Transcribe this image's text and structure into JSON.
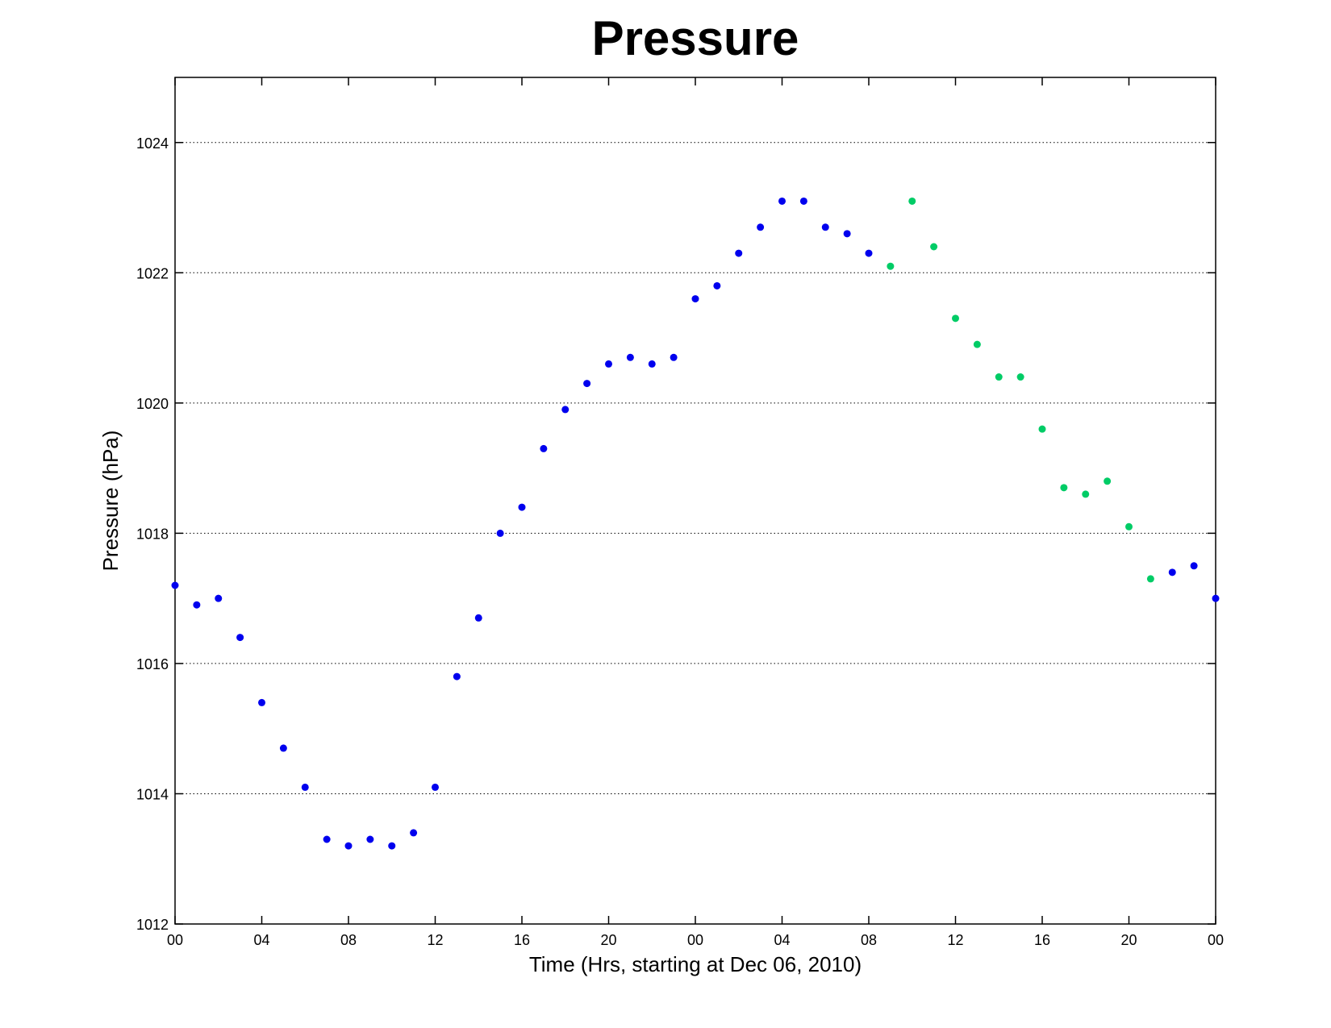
{
  "chart_data": {
    "type": "scatter",
    "title": "Pressure",
    "xlabel": "Time (Hrs, starting at Dec 06, 2010)",
    "ylabel": "Pressure (hPa)",
    "xlim": [
      0,
      48
    ],
    "ylim": [
      1012,
      1025
    ],
    "x_ticks": [
      0,
      4,
      8,
      12,
      16,
      20,
      24,
      28,
      32,
      36,
      40,
      44,
      48
    ],
    "x_tick_labels": [
      "00",
      "04",
      "08",
      "12",
      "16",
      "20",
      "00",
      "04",
      "08",
      "12",
      "16",
      "20",
      "00"
    ],
    "y_ticks": [
      1012,
      1014,
      1016,
      1018,
      1020,
      1022,
      1024
    ],
    "y_tick_labels": [
      "1012",
      "1014",
      "1016",
      "1018",
      "1020",
      "1022",
      "1024"
    ],
    "grid": "horizontal dotted",
    "series": [
      {
        "color": "#0000ee",
        "points": [
          [
            0,
            1017.2
          ],
          [
            1,
            1016.9
          ],
          [
            2,
            1017.0
          ],
          [
            3,
            1016.4
          ],
          [
            4,
            1015.4
          ],
          [
            5,
            1014.7
          ],
          [
            6,
            1014.1
          ],
          [
            7,
            1013.3
          ],
          [
            8,
            1013.2
          ],
          [
            9,
            1013.3
          ],
          [
            10,
            1013.2
          ],
          [
            11,
            1013.4
          ],
          [
            12,
            1014.1
          ],
          [
            13,
            1015.8
          ],
          [
            14,
            1016.7
          ],
          [
            15,
            1018.0
          ],
          [
            16,
            1018.4
          ],
          [
            17,
            1019.3
          ],
          [
            18,
            1019.9
          ],
          [
            19,
            1020.3
          ],
          [
            20,
            1020.6
          ],
          [
            21,
            1020.7
          ],
          [
            22,
            1020.6
          ],
          [
            23,
            1020.7
          ],
          [
            24,
            1021.6
          ],
          [
            25,
            1021.8
          ],
          [
            26,
            1022.3
          ],
          [
            27,
            1022.7
          ],
          [
            28,
            1023.1
          ],
          [
            29,
            1023.1
          ],
          [
            30,
            1022.7
          ],
          [
            31,
            1022.6
          ],
          [
            32,
            1022.3
          ],
          [
            46,
            1017.4
          ],
          [
            47,
            1017.5
          ],
          [
            48,
            1017.0
          ]
        ]
      },
      {
        "color": "#00cc66",
        "points": [
          [
            33,
            1022.1
          ],
          [
            34,
            1023.1
          ],
          [
            35,
            1022.4
          ],
          [
            36,
            1021.3
          ],
          [
            37,
            1020.9
          ],
          [
            38,
            1020.4
          ],
          [
            39,
            1020.4
          ],
          [
            40,
            1019.6
          ],
          [
            41,
            1018.7
          ],
          [
            42,
            1018.6
          ],
          [
            43,
            1018.8
          ],
          [
            44,
            1018.1
          ],
          [
            45,
            1017.3
          ]
        ]
      }
    ]
  }
}
